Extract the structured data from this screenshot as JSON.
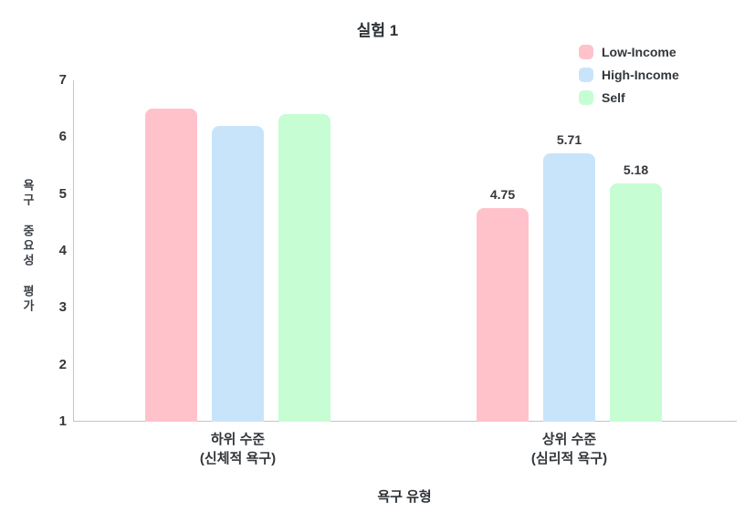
{
  "chart_data": {
    "type": "bar",
    "title": "실험 1",
    "xlabel": "욕구 유형",
    "ylabel": "욕구 중요성 평가",
    "ylim": [
      1,
      7
    ],
    "yticks": [
      7,
      6,
      5,
      4,
      3,
      2,
      1
    ],
    "grid": false,
    "legend_position": "top-right",
    "categories": [
      {
        "line1": "하위 수준",
        "line2": "(신체적 욕구)"
      },
      {
        "line1": "상위 수준",
        "line2": "(심리적 욕구)"
      }
    ],
    "series": [
      {
        "name": "Low-Income",
        "color": "#ffc2cb",
        "values": [
          6.5,
          4.75
        ],
        "labels": [
          "",
          "4.75"
        ]
      },
      {
        "name": "High-Income",
        "color": "#c8e4fb",
        "values": [
          6.2,
          5.71
        ],
        "labels": [
          "",
          "5.71"
        ]
      },
      {
        "name": "Self",
        "color": "#c6fdd3",
        "values": [
          6.4,
          5.18
        ],
        "labels": [
          "",
          "5.18"
        ]
      }
    ],
    "colors": {
      "text": "#33373b",
      "axis": "#c4c4c4"
    }
  }
}
